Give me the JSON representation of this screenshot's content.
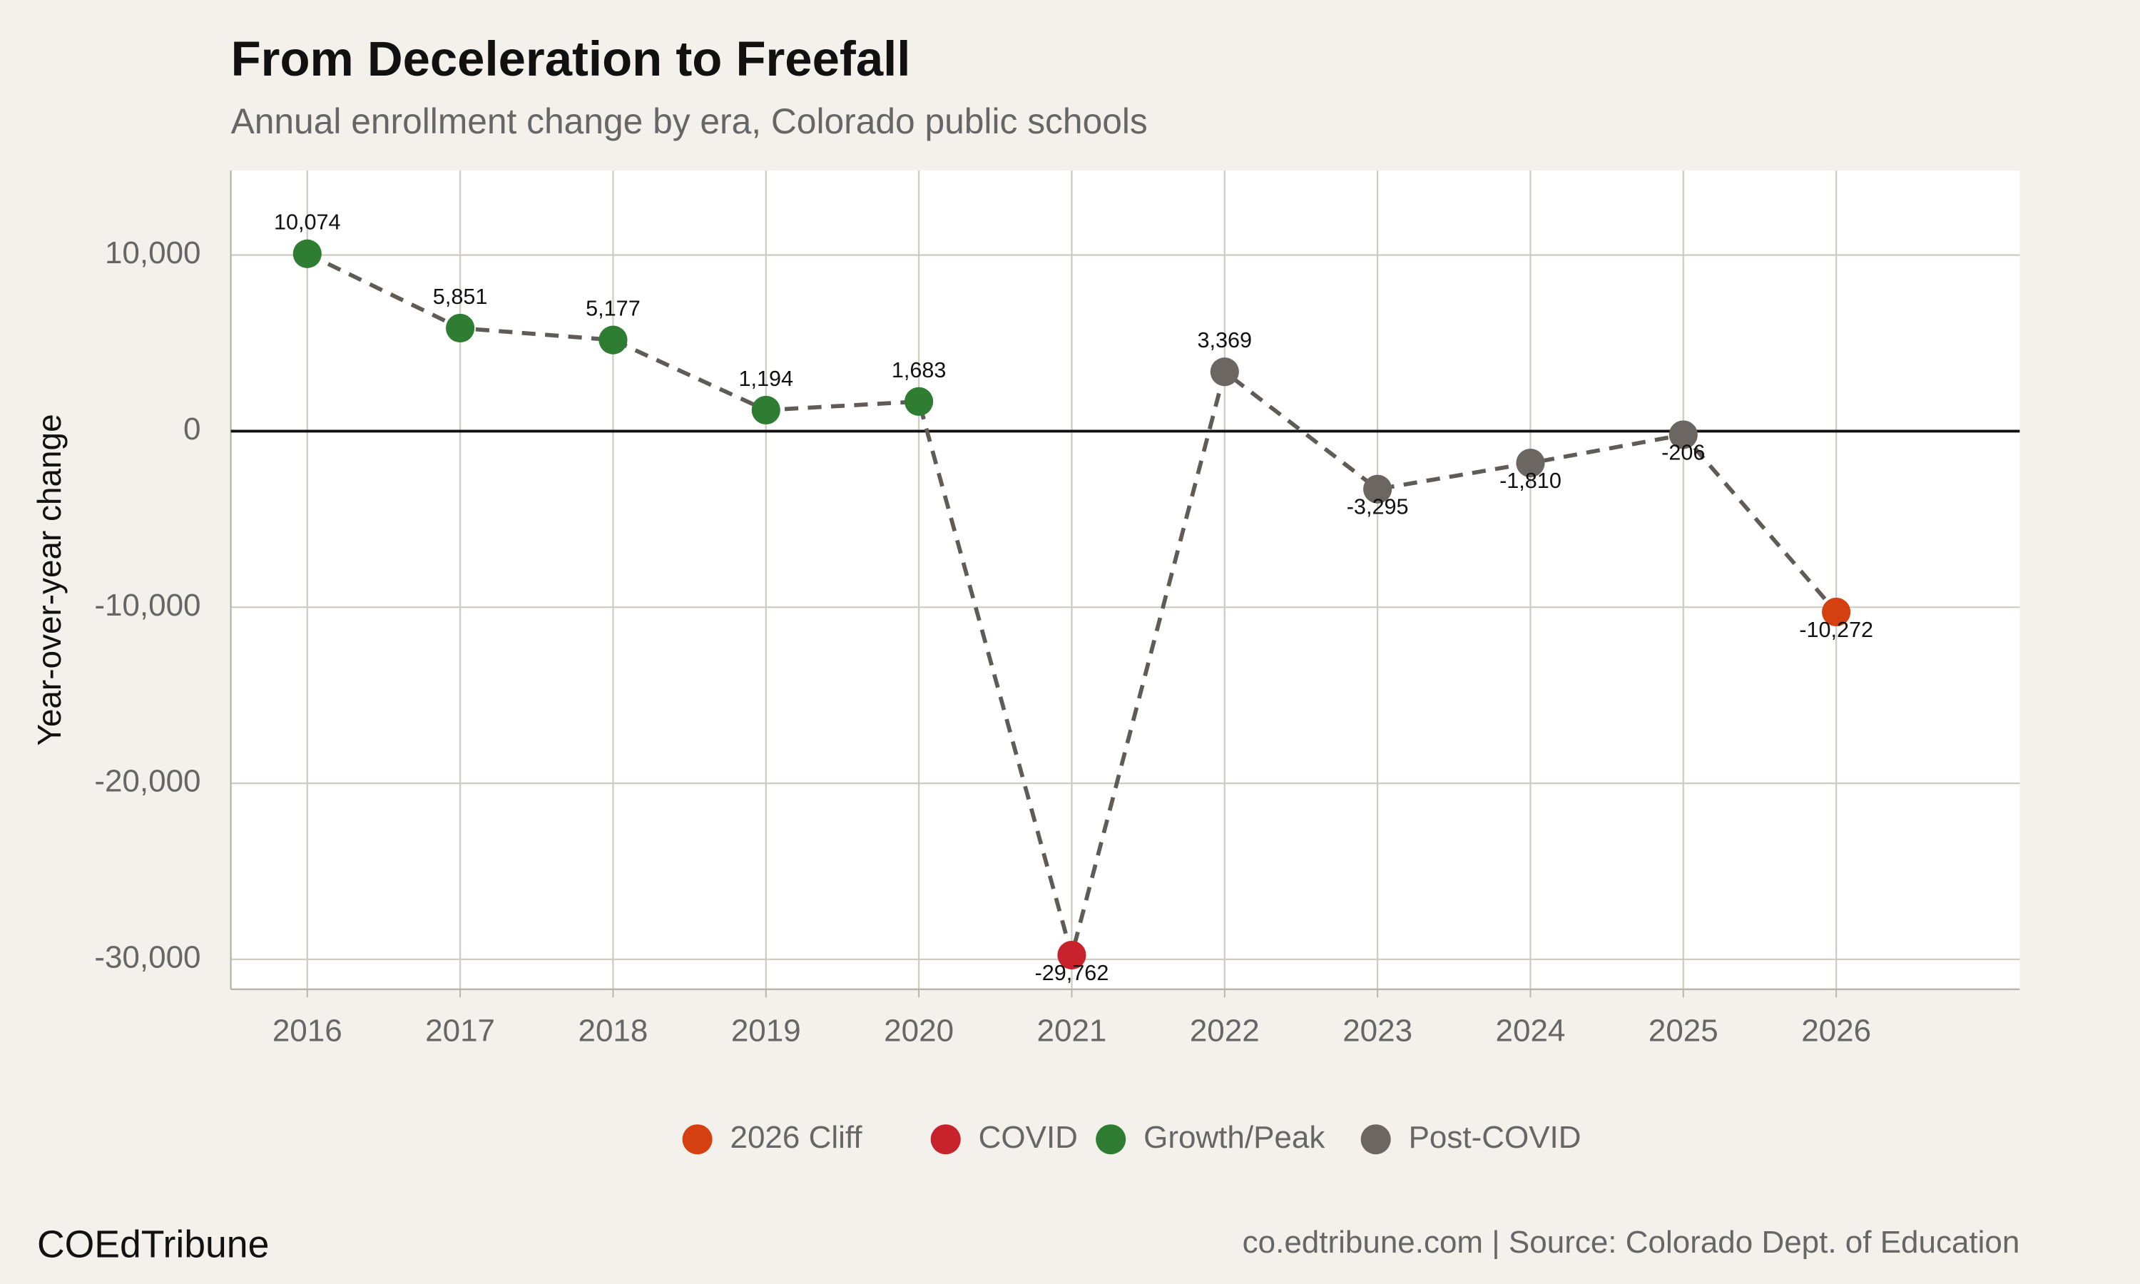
{
  "chart_data": {
    "type": "line",
    "title": "From Deceleration to Freefall",
    "subtitle": "Annual enrollment change by era, Colorado public schools",
    "y_label": "Year-over-year change",
    "x": [
      2016,
      2017,
      2018,
      2019,
      2020,
      2021,
      2022,
      2023,
      2024,
      2025,
      2026
    ],
    "values": [
      10074,
      5851,
      5177,
      1194,
      1683,
      -29762,
      3369,
      -3295,
      -1810,
      -206,
      -10272
    ],
    "value_labels": [
      "10,074",
      "5,851",
      "5,177",
      "1,194",
      "1,683",
      "-29,762",
      "3,369",
      "-3,295",
      "-1,810",
      "-206",
      "-10,272"
    ],
    "eras": [
      "Growth/Peak",
      "Growth/Peak",
      "Growth/Peak",
      "Growth/Peak",
      "Growth/Peak",
      "COVID",
      "Post-COVID",
      "Post-COVID",
      "Post-COVID",
      "Post-COVID",
      "2026 Cliff"
    ],
    "legend": [
      {
        "name": "2026 Cliff",
        "color": "#d4400f"
      },
      {
        "name": "COVID",
        "color": "#c8232c"
      },
      {
        "name": "Growth/Peak",
        "color": "#2e7d32"
      },
      {
        "name": "Post-COVID",
        "color": "#6b6661"
      }
    ],
    "line_color": "#5f5c58",
    "reference_line": 0,
    "xlim": [
      2015.5,
      2027.2
    ],
    "xticks": [
      2016,
      2017,
      2018,
      2019,
      2020,
      2021,
      2022,
      2023,
      2024,
      2025,
      2026
    ],
    "ylim": [
      -31700,
      14800
    ],
    "yticks": [
      {
        "value": 10000,
        "label": "10,000"
      },
      0,
      {
        "value": -10000,
        "label": "-10,000"
      },
      {
        "value": -20000,
        "label": "-20,000"
      },
      {
        "value": -30000,
        "label": "-30,000"
      }
    ],
    "grid": true,
    "legend_position": "bottom",
    "brand": "COEdTribune",
    "source": "co.edtribune.com | Source: Colorado Dept. of Education"
  }
}
